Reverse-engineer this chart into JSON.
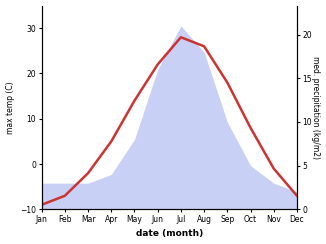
{
  "months": [
    "Jan",
    "Feb",
    "Mar",
    "Apr",
    "May",
    "Jun",
    "Jul",
    "Aug",
    "Sep",
    "Oct",
    "Nov",
    "Dec"
  ],
  "temperature": [
    -9,
    -7,
    -2,
    5,
    14,
    22,
    28,
    26,
    18,
    8,
    -1,
    -7
  ],
  "precipitation": [
    3,
    3,
    3,
    4,
    8,
    16,
    21,
    18,
    10,
    5,
    3,
    2
  ],
  "temp_color": "#cc3333",
  "precip_fill_color": "#c8d0f5",
  "temp_ylim": [
    -10,
    35
  ],
  "precip_ylim": [
    0,
    23.33
  ],
  "ylabel_left": "max temp (C)",
  "ylabel_right": "med. precipitation (kg/m2)",
  "xlabel": "date (month)",
  "right_yticks": [
    0,
    5,
    10,
    15,
    20
  ],
  "left_yticks": [
    -10,
    0,
    10,
    20,
    30
  ],
  "background_color": "#ffffff",
  "line_width": 1.8,
  "figwidth": 3.26,
  "figheight": 2.44,
  "dpi": 100
}
